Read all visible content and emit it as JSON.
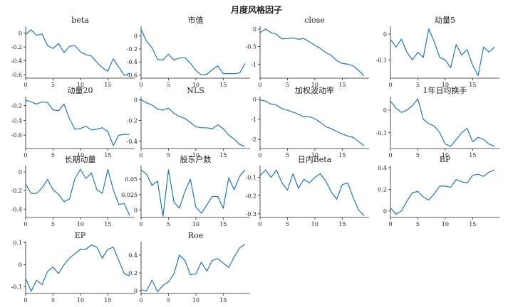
{
  "suptitle": "月度风格因子",
  "chart_data": [
    {
      "type": "line",
      "title": "beta",
      "x": [
        0,
        1,
        2,
        3,
        4,
        5,
        6,
        7,
        8,
        9,
        10,
        11,
        12,
        13,
        14,
        15,
        16,
        17,
        18,
        19
      ],
      "values": [
        -0.02,
        0.05,
        -0.03,
        -0.01,
        -0.18,
        -0.22,
        -0.15,
        -0.28,
        -0.19,
        -0.18,
        -0.27,
        -0.31,
        -0.33,
        -0.42,
        -0.5,
        -0.55,
        -0.37,
        -0.49,
        -0.61,
        -0.58
      ],
      "ylim": [
        -0.65,
        0.1
      ],
      "yticks": [
        0.0,
        -0.2,
        -0.4,
        -0.6
      ],
      "xticks": [
        0,
        5,
        10,
        15
      ]
    },
    {
      "type": "line",
      "title": "市值",
      "x": [
        0,
        1,
        2,
        3,
        4,
        5,
        6,
        7,
        8,
        9,
        10,
        11,
        12,
        13,
        14,
        15,
        16,
        17,
        18,
        19
      ],
      "values": [
        0.1,
        -0.08,
        -0.18,
        -0.36,
        -0.37,
        -0.28,
        -0.37,
        -0.34,
        -0.33,
        -0.42,
        -0.53,
        -0.6,
        -0.59,
        -0.52,
        -0.46,
        -0.58,
        -0.58,
        -0.58,
        -0.57,
        -0.42
      ],
      "ylim": [
        -0.65,
        0.15
      ],
      "yticks": [
        0.0,
        -0.2,
        -0.4,
        -0.6
      ],
      "xticks": [
        0,
        5,
        10,
        15
      ]
    },
    {
      "type": "line",
      "title": "close",
      "x": [
        0,
        1,
        2,
        3,
        4,
        5,
        6,
        7,
        8,
        9,
        10,
        11,
        12,
        13,
        14,
        15,
        16,
        17,
        18,
        19
      ],
      "values": [
        -0.1,
        0.0,
        -0.1,
        -0.15,
        -0.28,
        -0.27,
        -0.25,
        -0.29,
        -0.27,
        -0.36,
        -0.46,
        -0.55,
        -0.67,
        -0.75,
        -0.9,
        -0.98,
        -1.0,
        -1.05,
        -1.18,
        -1.33
      ],
      "ylim": [
        -1.4,
        0.08
      ],
      "yticks": [
        0.0,
        -0.5,
        -1.0
      ],
      "xticks": [
        0,
        5,
        10,
        15
      ]
    },
    {
      "type": "line",
      "title": "动量5",
      "x": [
        0,
        1,
        2,
        3,
        4,
        5,
        6,
        7,
        8,
        9,
        10,
        11,
        12,
        13,
        14,
        15,
        16,
        17,
        18,
        19
      ],
      "values": [
        -0.02,
        -0.05,
        -0.02,
        -0.07,
        -0.1,
        -0.07,
        -0.09,
        0.02,
        -0.03,
        -0.09,
        -0.1,
        -0.13,
        -0.04,
        -0.08,
        -0.06,
        -0.12,
        -0.16,
        -0.05,
        -0.07,
        -0.05
      ],
      "ylim": [
        -0.17,
        0.03
      ],
      "yticks": [
        0.0,
        -0.1
      ],
      "xticks": [
        0,
        5,
        10,
        15
      ]
    },
    {
      "type": "line",
      "title": "动量20",
      "x": [
        0,
        1,
        2,
        3,
        4,
        5,
        6,
        7,
        8,
        9,
        10,
        11,
        12,
        13,
        14,
        15,
        16,
        17,
        18,
        19
      ],
      "values": [
        -0.13,
        -0.15,
        -0.18,
        -0.15,
        -0.16,
        -0.26,
        -0.27,
        -0.18,
        -0.38,
        -0.52,
        -0.51,
        -0.48,
        -0.53,
        -0.52,
        -0.5,
        -0.55,
        -0.74,
        -0.6,
        -0.59,
        -0.59
      ],
      "ylim": [
        -0.78,
        -0.08
      ],
      "yticks": [
        -0.2,
        -0.4,
        -0.6
      ],
      "xticks": [
        0,
        5,
        10,
        15
      ]
    },
    {
      "type": "line",
      "title": "NLS",
      "x": [
        0,
        1,
        2,
        3,
        4,
        5,
        6,
        7,
        8,
        9,
        10,
        11,
        12,
        13,
        14,
        15,
        16,
        17,
        18,
        19
      ],
      "values": [
        0.0,
        -0.03,
        -0.05,
        -0.09,
        -0.1,
        -0.08,
        -0.13,
        -0.16,
        -0.18,
        -0.22,
        -0.26,
        -0.27,
        -0.27,
        -0.28,
        -0.24,
        -0.28,
        -0.34,
        -0.38,
        -0.43,
        -0.45
      ],
      "ylim": [
        -0.47,
        0.03
      ],
      "yticks": [
        0.0,
        -0.2,
        -0.4
      ],
      "xticks": [
        0,
        5,
        10,
        15
      ]
    },
    {
      "type": "line",
      "title": "加权波动率",
      "x": [
        0,
        1,
        2,
        3,
        4,
        5,
        6,
        7,
        8,
        9,
        10,
        11,
        12,
        13,
        14,
        15,
        16,
        17,
        18,
        19
      ],
      "values": [
        -0.05,
        -0.1,
        -0.25,
        -0.3,
        -0.48,
        -0.55,
        -0.65,
        -0.75,
        -0.88,
        -0.87,
        -0.98,
        -1.15,
        -1.37,
        -1.47,
        -1.6,
        -1.73,
        -1.83,
        -1.9,
        -2.1,
        -2.32
      ],
      "ylim": [
        -2.45,
        0.12
      ],
      "yticks": [
        0,
        -1,
        -2
      ],
      "xticks": [
        0,
        5,
        10,
        15
      ]
    },
    {
      "type": "line",
      "title": "1年日均换手",
      "x": [
        0,
        1,
        2,
        3,
        4,
        5,
        6,
        7,
        8,
        9,
        10,
        11,
        12,
        13,
        14,
        15,
        16,
        17,
        18,
        19
      ],
      "values": [
        0.04,
        0.01,
        -0.01,
        0.0,
        0.02,
        0.05,
        -0.04,
        -0.06,
        -0.07,
        -0.1,
        -0.15,
        -0.16,
        -0.13,
        -0.1,
        -0.08,
        -0.14,
        -0.12,
        -0.13,
        -0.15,
        -0.16
      ],
      "ylim": [
        -0.17,
        0.06
      ],
      "yticks": [
        0.0,
        -0.1
      ],
      "xticks": [
        0,
        5,
        10,
        15
      ]
    },
    {
      "type": "line",
      "title": "长期动量",
      "x": [
        0,
        1,
        2,
        3,
        4,
        5,
        6,
        7,
        8,
        9,
        10,
        11,
        12,
        13,
        14,
        15,
        16,
        17,
        18,
        19
      ],
      "values": [
        -0.13,
        -0.23,
        -0.23,
        -0.17,
        -0.08,
        -0.19,
        -0.24,
        -0.32,
        -0.29,
        -0.07,
        0.03,
        -0.07,
        -0.01,
        -0.19,
        -0.23,
        0.03,
        -0.19,
        -0.35,
        -0.34,
        -0.47
      ],
      "ylim": [
        -0.49,
        0.07
      ],
      "yticks": [
        0.0,
        -0.2,
        -0.4
      ],
      "xticks": [
        0,
        5,
        10,
        15
      ]
    },
    {
      "type": "line",
      "title": "股东户数",
      "x": [
        0,
        1,
        2,
        3,
        4,
        5,
        6,
        7,
        8,
        9,
        10,
        11,
        12,
        13,
        14,
        15,
        16,
        17,
        18,
        19
      ],
      "values": [
        0.065,
        0.058,
        0.04,
        0.047,
        -0.01,
        0.065,
        0.013,
        0.003,
        0.03,
        0.05,
        0.005,
        -0.005,
        0.008,
        0.022,
        0.022,
        0.003,
        0.052,
        0.033,
        0.055,
        0.065
      ],
      "ylim": [
        -0.012,
        0.072
      ],
      "yticks": [
        0.0,
        0.025,
        0.05
      ],
      "xticks": [
        0,
        5,
        10,
        15
      ]
    },
    {
      "type": "line",
      "title": "日内Beta",
      "x": [
        0,
        1,
        2,
        3,
        4,
        5,
        6,
        7,
        8,
        9,
        10,
        11,
        12,
        13,
        14,
        15,
        16,
        17,
        18,
        19
      ],
      "values": [
        -0.09,
        -0.06,
        -0.1,
        -0.06,
        -0.13,
        -0.17,
        -0.08,
        -0.16,
        -0.11,
        -0.13,
        -0.1,
        -0.08,
        -0.12,
        -0.18,
        -0.22,
        -0.14,
        -0.13,
        -0.21,
        -0.28,
        -0.31
      ],
      "ylim": [
        -0.32,
        -0.035
      ],
      "yticks": [
        -0.1,
        -0.2,
        -0.3
      ],
      "xticks": [
        0,
        5,
        10,
        15
      ]
    },
    {
      "type": "line",
      "title": "BP",
      "x": [
        0,
        1,
        2,
        3,
        4,
        5,
        6,
        7,
        8,
        9,
        10,
        11,
        12,
        13,
        14,
        15,
        16,
        17,
        18,
        19
      ],
      "values": [
        0.03,
        -0.03,
        0.0,
        0.09,
        0.17,
        0.18,
        0.13,
        0.1,
        0.16,
        0.23,
        0.23,
        0.22,
        0.29,
        0.27,
        0.26,
        0.33,
        0.34,
        0.32,
        0.36,
        0.38
      ],
      "ylim": [
        -0.06,
        0.42
      ],
      "yticks": [
        0.0,
        0.2,
        0.4
      ],
      "xticks": [
        0,
        5,
        10,
        15
      ]
    },
    {
      "type": "line",
      "title": "EP",
      "x": [
        0,
        1,
        2,
        3,
        4,
        5,
        6,
        7,
        8,
        9,
        10,
        11,
        12,
        13,
        14,
        15,
        16,
        17,
        18,
        19
      ],
      "values": [
        -0.06,
        -0.12,
        -0.07,
        -0.09,
        -0.03,
        -0.01,
        -0.04,
        0.0,
        0.03,
        0.05,
        0.07,
        0.07,
        0.09,
        0.08,
        0.03,
        0.07,
        0.08,
        0.02,
        -0.04,
        -0.05
      ],
      "ylim": [
        -0.13,
        0.105
      ],
      "yticks": [
        0.1,
        0.0,
        -0.1
      ],
      "xticks": [
        0,
        5,
        10,
        15
      ]
    },
    {
      "type": "line",
      "title": "Roe",
      "x": [
        0,
        1,
        2,
        3,
        4,
        5,
        6,
        7,
        8,
        9,
        10,
        11,
        12,
        13,
        14,
        15,
        16,
        17,
        18,
        19
      ],
      "values": [
        0.01,
        0.0,
        0.12,
        -0.01,
        0.06,
        0.1,
        0.19,
        0.4,
        0.34,
        0.18,
        0.19,
        0.32,
        0.22,
        0.34,
        0.36,
        0.31,
        0.26,
        0.38,
        0.48,
        0.52
      ],
      "ylim": [
        -0.03,
        0.55
      ],
      "yticks": [
        0.0,
        0.2,
        0.4
      ],
      "xticks": [
        0,
        5,
        10,
        15
      ]
    }
  ]
}
